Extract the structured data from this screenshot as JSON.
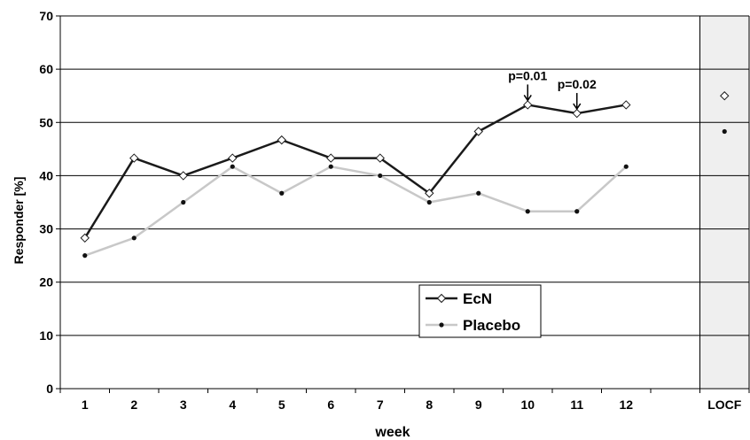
{
  "chart_data": {
    "type": "line",
    "xlabel": "week",
    "ylabel": "Responder [%]",
    "ylim": [
      0,
      70
    ],
    "yticks": [
      0,
      10,
      20,
      30,
      40,
      50,
      60,
      70
    ],
    "grid": true,
    "categories": [
      "1",
      "2",
      "3",
      "4",
      "5",
      "6",
      "7",
      "8",
      "9",
      "10",
      "11",
      "12",
      "",
      "LOCF"
    ],
    "series": [
      {
        "name": "EcN",
        "color": "#1a1a1a",
        "marker": "diamond-open",
        "values": [
          28.3,
          43.3,
          40.0,
          43.3,
          46.7,
          43.3,
          43.3,
          36.7,
          48.3,
          53.3,
          51.7,
          53.3,
          null,
          55.0
        ]
      },
      {
        "name": "Placebo",
        "color": "#c8c8c8",
        "marker": "dot",
        "values": [
          25.0,
          28.3,
          35.0,
          41.7,
          36.7,
          41.7,
          40.0,
          35.0,
          36.7,
          33.3,
          33.3,
          41.7,
          null,
          48.3
        ]
      }
    ],
    "connect_range": [
      0,
      11
    ],
    "shaded_category": "LOCF",
    "shade_color": "#efefef",
    "legend_position": "lower-center",
    "annotations": [
      {
        "text": "p=0.01",
        "category_index": 9,
        "arrow": "down"
      },
      {
        "text": "p=0.02",
        "category_index": 10,
        "arrow": "down"
      }
    ]
  }
}
